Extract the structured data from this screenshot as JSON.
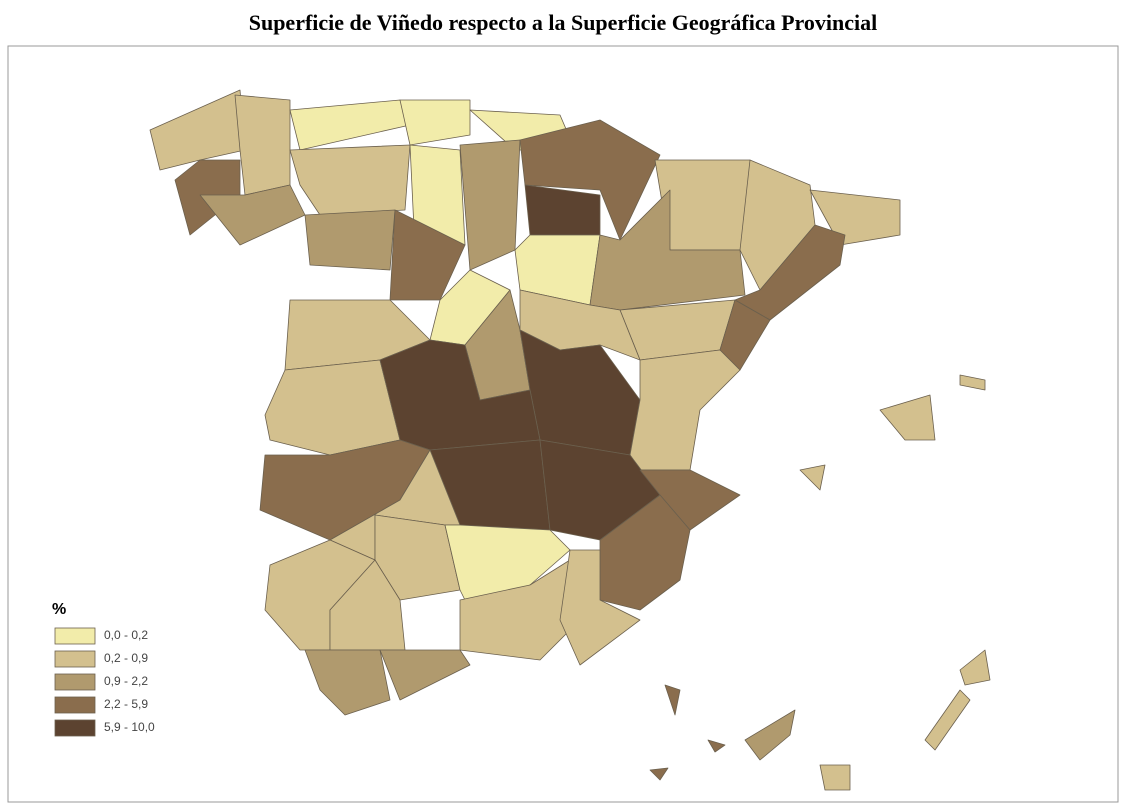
{
  "title": "Superficie de Viñedo respecto a la Superficie Geográfica Provincial",
  "legend": {
    "title": "%",
    "items": [
      {
        "label": "0,0 - 0,2",
        "color": "#f2ecaa"
      },
      {
        "label": "0,2 - 0,9",
        "color": "#d3c08e"
      },
      {
        "label": "0,9 - 2,2",
        "color": "#b09a6e"
      },
      {
        "label": "2,2 - 5,9",
        "color": "#8a6d4d"
      },
      {
        "label": "5,9 - 10,0",
        "color": "#5c4330"
      }
    ]
  }
}
